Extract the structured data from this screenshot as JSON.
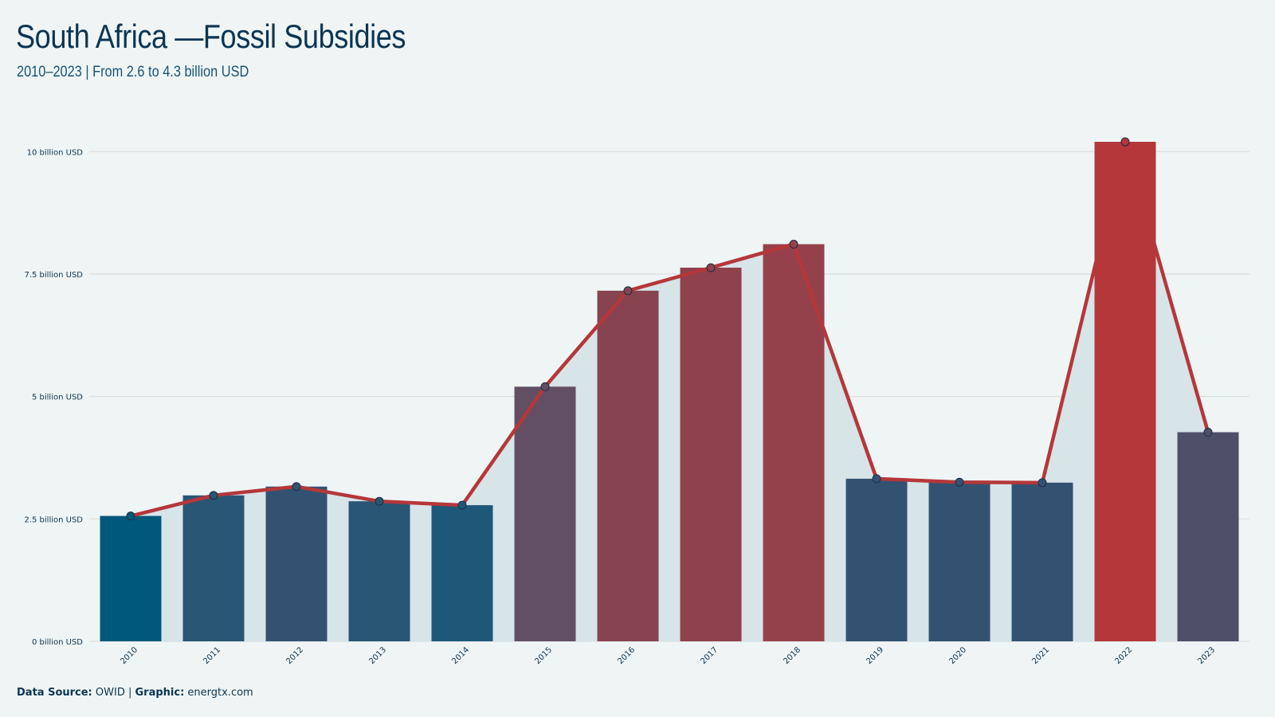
{
  "header": {
    "title": "South Africa —Fossil Subsidies",
    "subtitle": "2010–2023 | From 2.6 to 4.3 billion USD"
  },
  "footer": {
    "source_label": "Data Source:",
    "source_value": "OWID |",
    "graphic_label": "Graphic:",
    "graphic_value": "energtx.com"
  },
  "colors": {
    "background": "#eff5f5",
    "line": "#b5373a",
    "area": "#d7e4e8",
    "grid": "#d9dede",
    "low_bar": "#00587a",
    "high_bar": "#b5373a"
  },
  "chart_data": {
    "type": "bar",
    "title": "South Africa —Fossil Subsidies",
    "subtitle": "2010–2023 | From 2.6 to 4.3 billion USD",
    "categories": [
      "2010",
      "2011",
      "2012",
      "2013",
      "2014",
      "2015",
      "2016",
      "2017",
      "2018",
      "2019",
      "2020",
      "2021",
      "2022",
      "2023"
    ],
    "values": [
      2.56,
      2.98,
      3.16,
      2.86,
      2.78,
      5.2,
      7.16,
      7.63,
      8.11,
      3.32,
      3.25,
      3.24,
      10.2,
      4.27
    ],
    "bar_colors": [
      "#00587a",
      "#2a5676",
      "#335272",
      "#285674",
      "#1e5879",
      "#634f64",
      "#874350",
      "#8f414c",
      "#95414b",
      "#335272",
      "#335272",
      "#335272",
      "#b5373a",
      "#4e5068"
    ],
    "overlay": "line with markers and shaded area",
    "yticks": [
      0,
      2.5,
      5,
      7.5,
      10
    ],
    "ytick_labels": [
      "0 billion USD",
      "2.5 billion USD",
      "5 billion USD",
      "7.5 billion USD",
      "10 billion USD"
    ],
    "ylim": [
      0,
      10.2
    ],
    "grid": true,
    "xlabel": "",
    "ylabel": ""
  }
}
